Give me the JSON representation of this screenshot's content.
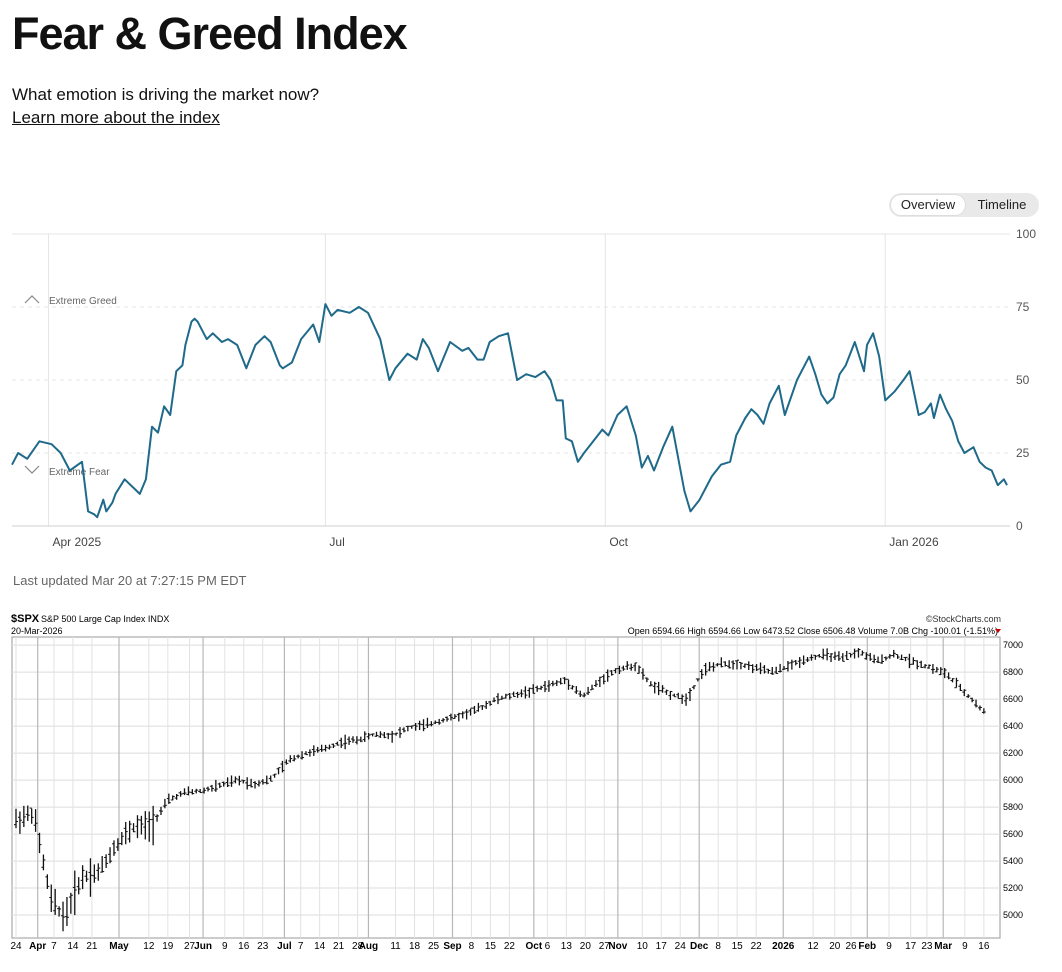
{
  "header": {
    "title": "Fear & Greed Index",
    "subtitle": "What emotion is driving the market now?",
    "learn_link": "Learn more about the index"
  },
  "toggle": {
    "overview_label": "Overview",
    "timeline_label": "Timeline"
  },
  "last_updated": "Last updated Mar 20 at 7:27:15 PM EDT",
  "colors": {
    "line": "#1f6a8a",
    "grid": "#d6d6d6",
    "bar": "#111111"
  },
  "chart_data": [
    {
      "type": "line",
      "title": "Fear & Greed Index Timeline",
      "ylim": [
        0,
        100
      ],
      "yticks": [
        0,
        25,
        50,
        75,
        100
      ],
      "xlabels": [
        "Apr 2025",
        "Jul",
        "Oct",
        "Jan 2026"
      ],
      "x_range_days": [
        0,
        328
      ],
      "xtick_days": [
        12,
        103,
        195,
        287
      ],
      "zones": [
        {
          "label": "Extreme Greed",
          "value": 75
        },
        {
          "label": "Extreme Fear",
          "value": 25
        }
      ],
      "x": [
        0,
        2,
        5,
        9,
        13,
        16,
        19,
        23,
        25,
        27,
        28,
        30,
        31,
        33,
        34,
        37,
        40,
        42,
        44,
        46,
        48,
        50,
        52,
        54,
        56,
        57,
        59,
        60,
        61,
        64,
        66,
        69,
        71,
        74,
        77,
        80,
        83,
        85,
        88,
        89,
        92,
        95,
        99,
        101,
        103,
        105,
        107,
        111,
        114,
        117,
        121,
        124,
        126,
        130,
        133,
        135,
        137,
        140,
        144,
        148,
        150,
        153,
        155,
        157,
        160,
        163,
        166,
        169,
        172,
        175,
        177,
        179,
        181,
        182,
        184,
        186,
        188,
        191,
        194,
        196,
        199,
        202,
        205,
        207,
        209,
        211,
        214,
        217,
        221,
        223,
        226,
        228,
        230,
        233,
        236,
        238,
        241,
        243,
        245,
        247,
        249,
        252,
        254,
        258,
        262,
        264,
        266,
        268,
        270,
        272,
        274,
        277,
        280,
        281,
        283,
        285,
        287,
        290,
        293,
        295,
        298,
        300,
        302,
        303,
        305,
        307,
        309,
        311,
        313,
        316,
        318,
        320,
        322,
        324,
        326,
        327
      ],
      "values": [
        21,
        25,
        23,
        29,
        28,
        25,
        19,
        22,
        5,
        4,
        3,
        9,
        5,
        8,
        11,
        16,
        13,
        11,
        16,
        34,
        32,
        41,
        38,
        53,
        55,
        62,
        70,
        71,
        70,
        64,
        66,
        63,
        64,
        62,
        54,
        62,
        65,
        63,
        55,
        54,
        56,
        64,
        69,
        63,
        76,
        72,
        74,
        73,
        75,
        73,
        64,
        50,
        54,
        59,
        57,
        64,
        61,
        53,
        63,
        60,
        61,
        57,
        57,
        63,
        65,
        66,
        50,
        52,
        51,
        53,
        50,
        43,
        43,
        30,
        29,
        22,
        25,
        29,
        33,
        31,
        38,
        41,
        31,
        20,
        24,
        19,
        27,
        34,
        12,
        5,
        9,
        13,
        17,
        21,
        22,
        31,
        37,
        40,
        38,
        35,
        42,
        48,
        38,
        50,
        58,
        52,
        45,
        42,
        44,
        52,
        55,
        63,
        53,
        62,
        66,
        58,
        43,
        46,
        50,
        53,
        38,
        39,
        42,
        37,
        45,
        40,
        36,
        29,
        25,
        27,
        22,
        20,
        19,
        14,
        16,
        14
      ]
    },
    {
      "type": "line",
      "series_style": "ohlc-bars",
      "title": "$SPX S&P 500 Large Cap Index INDX",
      "symbol": "$SPX",
      "name": "S&P 500 Large Cap Index INDX",
      "date": "20-Mar-2026",
      "source": "©StockCharts.com",
      "quote": "Open 6594.66  High 6594.66  Low 6473.52  Close 6506.48  Volume 7.0B  Chg -100.01 (-1.51%)",
      "ylim": [
        4830,
        7060
      ],
      "yticks": [
        5000,
        5200,
        5400,
        5600,
        5800,
        6000,
        6200,
        6400,
        6600,
        6800,
        7000
      ],
      "x_range_days": [
        0,
        496
      ],
      "xticks": [
        {
          "label": "24",
          "day": 0
        },
        {
          "label": "Apr",
          "day": 8,
          "bold": true
        },
        {
          "label": "7",
          "day": 14
        },
        {
          "label": "14",
          "day": 21
        },
        {
          "label": "21",
          "day": 28
        },
        {
          "label": "May",
          "day": 38,
          "bold": true
        },
        {
          "label": "12",
          "day": 49
        },
        {
          "label": "19",
          "day": 56
        },
        {
          "label": "27",
          "day": 64
        },
        {
          "label": "Jun",
          "day": 69,
          "bold": true
        },
        {
          "label": "9",
          "day": 77
        },
        {
          "label": "16",
          "day": 84
        },
        {
          "label": "23",
          "day": 91
        },
        {
          "label": "Jul",
          "day": 99,
          "bold": true
        },
        {
          "label": "7",
          "day": 105
        },
        {
          "label": "14",
          "day": 112
        },
        {
          "label": "21",
          "day": 119
        },
        {
          "label": "28",
          "day": 126
        },
        {
          "label": "Aug",
          "day": 130,
          "bold": true
        },
        {
          "label": "11",
          "day": 140
        },
        {
          "label": "18",
          "day": 147
        },
        {
          "label": "25",
          "day": 154
        },
        {
          "label": "Sep",
          "day": 161,
          "bold": true
        },
        {
          "label": "8",
          "day": 168
        },
        {
          "label": "15",
          "day": 175
        },
        {
          "label": "22",
          "day": 182
        },
        {
          "label": "Oct",
          "day": 191,
          "bold": true
        },
        {
          "label": "6",
          "day": 196
        },
        {
          "label": "13",
          "day": 203
        },
        {
          "label": "20",
          "day": 210
        },
        {
          "label": "27",
          "day": 217
        },
        {
          "label": "Nov",
          "day": 222,
          "bold": true
        },
        {
          "label": "10",
          "day": 231
        },
        {
          "label": "17",
          "day": 238
        },
        {
          "label": "24",
          "day": 245
        },
        {
          "label": "Dec",
          "day": 252,
          "bold": true
        },
        {
          "label": "8",
          "day": 259
        },
        {
          "label": "15",
          "day": 266
        },
        {
          "label": "22",
          "day": 273
        },
        {
          "label": "2026",
          "day": 283,
          "bold": true
        },
        {
          "label": "12",
          "day": 294
        },
        {
          "label": "20",
          "day": 302
        },
        {
          "label": "26",
          "day": 308
        },
        {
          "label": "Feb",
          "day": 314,
          "bold": true
        },
        {
          "label": "9",
          "day": 322
        },
        {
          "label": "17",
          "day": 330
        },
        {
          "label": "23",
          "day": 336
        },
        {
          "label": "Mar",
          "day": 342,
          "bold": true
        },
        {
          "label": "9",
          "day": 350
        },
        {
          "label": "16",
          "day": 357
        }
      ],
      "x_scale_days_per_label": "trading-day index",
      "closes_weekly": [
        5700,
        5760,
        5120,
        4982,
        5280,
        5320,
        5525,
        5650,
        5660,
        5850,
        5910,
        5920,
        5960,
        6000,
        5970,
        6010,
        6150,
        6200,
        6230,
        6280,
        6300,
        6340,
        6330,
        6390,
        6410,
        6450,
        6480,
        6530,
        6600,
        6630,
        6660,
        6700,
        6740,
        6620,
        6740,
        6820,
        6850,
        6700,
        6640,
        6600,
        6820,
        6860,
        6860,
        6830,
        6800,
        6850,
        6900,
        6930,
        6900,
        6950,
        6880,
        6930,
        6880,
        6840,
        6790,
        6660,
        6506
      ],
      "closes_weekly_days": [
        0,
        5,
        10,
        14,
        19,
        24,
        29,
        34,
        39,
        44,
        49,
        54,
        59,
        64,
        69,
        74,
        79,
        84,
        89,
        94,
        99,
        104,
        109,
        114,
        119,
        124,
        129,
        134,
        139,
        144,
        149,
        154,
        159,
        164,
        169,
        174,
        179,
        184,
        189,
        194,
        199,
        204,
        209,
        214,
        219,
        224,
        229,
        234,
        239,
        244,
        249,
        254,
        259,
        264,
        269,
        274,
        280
      ],
      "last_close": 6506.48
    }
  ]
}
